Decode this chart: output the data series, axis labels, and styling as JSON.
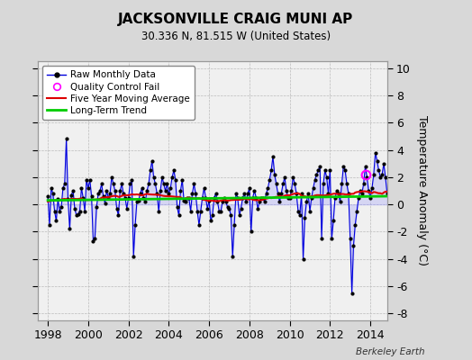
{
  "title": "JACKSONVILLE CRAIG MUNI AP",
  "subtitle": "30.336 N, 81.515 W (United States)",
  "ylabel": "Temperature Anomaly (°C)",
  "watermark": "Berkeley Earth",
  "xlim": [
    1997.5,
    2014.83
  ],
  "ylim": [
    -8.5,
    10.5
  ],
  "yticks": [
    -8,
    -6,
    -4,
    -2,
    0,
    2,
    4,
    6,
    8,
    10
  ],
  "xticks": [
    1998,
    2000,
    2002,
    2004,
    2006,
    2008,
    2010,
    2012,
    2014
  ],
  "bg_color": "#d8d8d8",
  "plot_bg_color": "#f0f0f0",
  "grid_color": "#bbbbbb",
  "raw_color": "#0000dd",
  "raw_fill_color": "#8888ff",
  "ma_color": "#dd0000",
  "trend_color": "#00cc00",
  "qc_color": "#ff00ff",
  "raw_monthly": [
    0.6,
    -1.5,
    1.2,
    0.8,
    -0.5,
    -1.2,
    0.4,
    -0.5,
    -0.2,
    1.2,
    1.5,
    4.8,
    0.4,
    -1.8,
    0.7,
    1.0,
    -0.3,
    -0.8,
    -0.7,
    -0.5,
    1.2,
    0.5,
    -0.5,
    1.8,
    1.2,
    1.8,
    0.6,
    -2.7,
    -2.5,
    -0.2,
    0.8,
    1.0,
    1.5,
    0.6,
    0.1,
    1.0,
    0.5,
    0.8,
    2.0,
    1.5,
    1.0,
    -0.3,
    -0.8,
    1.0,
    1.5,
    0.8,
    0.5,
    -0.3,
    0.5,
    1.5,
    1.8,
    -3.8,
    -1.5,
    0.2,
    0.3,
    0.8,
    1.2,
    0.5,
    0.2,
    1.0,
    1.5,
    2.5,
    3.2,
    2.0,
    1.5,
    0.8,
    -0.5,
    1.0,
    2.0,
    1.5,
    1.0,
    1.5,
    0.8,
    1.2,
    2.0,
    2.5,
    1.8,
    -0.2,
    -0.8,
    1.0,
    1.8,
    0.3,
    0.2,
    0.5,
    0.5,
    -0.5,
    0.8,
    1.5,
    0.8,
    -0.5,
    -1.5,
    -0.5,
    0.5,
    1.2,
    0.5,
    -0.3,
    0.3,
    -1.2,
    -0.8,
    0.5,
    0.8,
    0.2,
    -0.5,
    -0.5,
    0.2,
    0.5,
    0.2,
    -0.2,
    -0.3,
    -0.8,
    -3.8,
    -1.5,
    0.8,
    0.5,
    -0.8,
    -0.3,
    0.5,
    0.8,
    0.2,
    0.8,
    1.2,
    -2.0,
    0.5,
    1.0,
    0.5,
    -0.3,
    0.2,
    0.5,
    0.5,
    0.2,
    0.8,
    1.2,
    1.8,
    2.5,
    3.5,
    2.2,
    1.5,
    0.8,
    0.2,
    0.8,
    1.5,
    2.0,
    1.0,
    0.5,
    0.5,
    1.0,
    2.0,
    1.5,
    0.8,
    -0.5,
    -0.8,
    0.8,
    -4.0,
    -1.0,
    0.2,
    0.8,
    -0.5,
    0.5,
    1.2,
    1.8,
    2.2,
    2.5,
    2.8,
    -2.5,
    1.5,
    2.5,
    2.0,
    0.8,
    2.5,
    -2.5,
    -1.2,
    0.5,
    1.0,
    0.8,
    0.2,
    1.5,
    2.8,
    2.5,
    1.5,
    0.8,
    -2.5,
    -6.5,
    -3.0,
    -1.5,
    -0.5,
    0.5,
    1.0,
    0.8,
    1.5,
    2.8,
    2.0,
    1.0,
    0.5,
    1.2,
    2.2,
    3.8,
    3.2,
    2.5,
    2.0,
    2.2,
    3.0,
    2.0,
    0.8,
    0.2
  ],
  "qc_fail_time": 2013.75,
  "qc_fail_value": 2.2,
  "trend_slope": 0.018,
  "trend_intercept": 0.3
}
